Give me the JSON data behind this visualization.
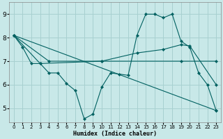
{
  "background_color": "#c8e8e8",
  "grid_color": "#a8d0d0",
  "line_color": "#006060",
  "xlabel": "Humidex (Indice chaleur)",
  "xlim": [
    -0.5,
    23.5
  ],
  "ylim": [
    4.4,
    9.5
  ],
  "xticks": [
    0,
    1,
    2,
    3,
    4,
    5,
    6,
    7,
    8,
    9,
    10,
    11,
    12,
    13,
    14,
    15,
    16,
    17,
    18,
    19,
    20,
    21,
    22,
    23
  ],
  "yticks": [
    5,
    6,
    7,
    8,
    9
  ],
  "line_jagged": {
    "x": [
      0,
      1,
      2,
      3,
      4,
      5,
      6,
      7,
      8,
      9,
      10,
      11,
      12,
      13,
      14,
      15,
      16,
      17,
      18,
      19,
      20,
      21,
      22,
      23
    ],
    "y": [
      8.1,
      7.6,
      6.9,
      6.9,
      6.5,
      6.5,
      6.05,
      5.75,
      4.55,
      4.75,
      5.9,
      6.5,
      6.45,
      6.4,
      8.1,
      9.0,
      9.0,
      8.85,
      9.0,
      7.85,
      7.6,
      6.5,
      6.0,
      4.9
    ]
  },
  "line_upper": {
    "x": [
      0,
      3,
      10,
      14,
      17,
      19,
      20,
      23
    ],
    "y": [
      8.1,
      6.9,
      7.0,
      7.35,
      7.5,
      7.7,
      7.65,
      6.0
    ]
  },
  "line_mid": {
    "x": [
      0,
      4,
      10,
      19,
      23
    ],
    "y": [
      8.1,
      7.0,
      7.0,
      7.0,
      7.0
    ]
  },
  "line_diagonal": {
    "x": [
      0,
      23
    ],
    "y": [
      8.1,
      4.9
    ]
  }
}
